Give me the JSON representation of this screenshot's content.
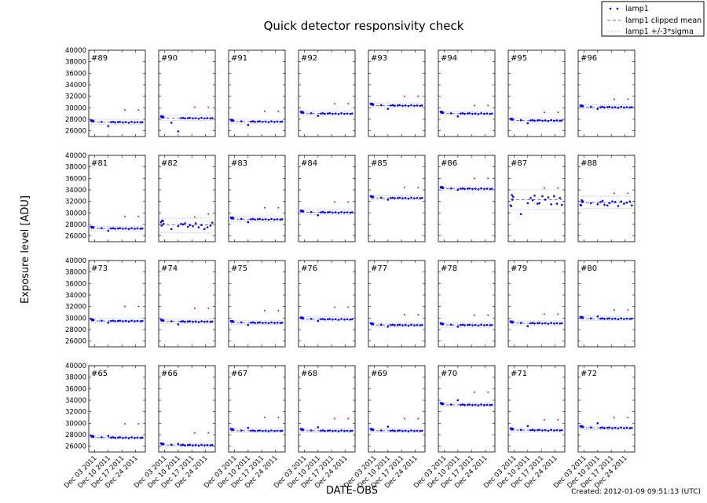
{
  "chart_data": {
    "type": "scatter",
    "title": "Quick detector responsivity check",
    "xlabel": "DATE-OBS",
    "ylabel": "Exposure level [ADU]",
    "footer": "Created: 2012-01-09 09:51:13 (UTC)",
    "ylim": [
      25000,
      40000
    ],
    "yticks": [
      26000,
      28000,
      30000,
      32000,
      34000,
      36000,
      38000,
      40000
    ],
    "xlim": [
      "2011-11-30",
      "2011-12-29"
    ],
    "xticks": [
      "2011-12-03",
      "2011-12-10",
      "2011-12-17",
      "2011-12-24"
    ],
    "xtick_labels": [
      "Dec 03 2011",
      "Dec 10 2011",
      "Dec 17 2011",
      "Dec 24 2011"
    ],
    "grid": false,
    "legend": {
      "placement": "top-right",
      "entries": [
        {
          "label": "lamp1",
          "style": "dots",
          "color": "#0000ff"
        },
        {
          "label": "lamp1 clipped mean",
          "style": "dashed",
          "color": "#6666ff"
        },
        {
          "label": "lamp1 +/-3*sigma",
          "style": "dotted",
          "color": "#9999ff"
        }
      ]
    },
    "colors": {
      "points": "#0000ff",
      "outliers": "#ff0000",
      "mean": "#5555ff",
      "sigma": "#9999ff"
    },
    "dates": [
      "2011-12-01T04",
      "2011-12-01T12",
      "2011-12-01T20",
      "2011-12-02T04",
      "2011-12-02T12",
      "2011-12-06T12",
      "2011-12-10T00",
      "2011-12-11T12",
      "2011-12-12T12",
      "2011-12-13T12",
      "2011-12-15T00",
      "2011-12-16T00",
      "2011-12-17T12",
      "2011-12-19T00",
      "2011-12-20T12",
      "2011-12-22T00",
      "2011-12-23T12",
      "2011-12-25T00",
      "2011-12-26T12",
      "2011-12-27T12"
    ],
    "outlier_dates": [
      "2011-12-18T12",
      "2011-12-25T12"
    ],
    "panels": [
      {
        "label": "#89",
        "mean": 27500,
        "lower": 27100,
        "upper": 28000,
        "outliers": [
          29600,
          29600
        ],
        "values": [
          27800,
          27700,
          27800,
          27750,
          27650,
          27550,
          26800,
          27500,
          27550,
          27450,
          27500,
          27550,
          27450,
          27500,
          27400,
          27550,
          27450,
          27500,
          27450,
          27500
        ]
      },
      {
        "label": "#90",
        "mean": 28200,
        "lower": 27800,
        "upper": 28700,
        "outliers": [
          30100,
          30100
        ],
        "values": [
          28500,
          28400,
          28500,
          28450,
          28350,
          27400,
          25900,
          28200,
          28250,
          28150,
          28200,
          28250,
          28150,
          28200,
          28100,
          28250,
          28150,
          28200,
          28150,
          28200
        ]
      },
      {
        "label": "#91",
        "mean": 27600,
        "lower": 27200,
        "upper": 28000,
        "outliers": [
          29400,
          29400
        ],
        "values": [
          27900,
          27800,
          27900,
          27850,
          27750,
          27650,
          27000,
          27600,
          27650,
          27550,
          27600,
          27650,
          27550,
          27600,
          27500,
          27650,
          27550,
          27600,
          27550,
          27600
        ]
      },
      {
        "label": "#92",
        "mean": 29000,
        "lower": 28700,
        "upper": 29400,
        "outliers": [
          30700,
          30700
        ],
        "values": [
          29300,
          29200,
          29300,
          29250,
          29150,
          29050,
          28600,
          29000,
          29050,
          28950,
          29000,
          29050,
          28950,
          29000,
          28900,
          29050,
          28950,
          29000,
          28950,
          29000
        ]
      },
      {
        "label": "#93",
        "mean": 30400,
        "lower": 30100,
        "upper": 30800,
        "outliers": [
          32000,
          32000
        ],
        "values": [
          30700,
          30600,
          30700,
          30650,
          30550,
          30450,
          29800,
          30400,
          30450,
          30350,
          30400,
          30450,
          30350,
          30400,
          30300,
          30450,
          30350,
          30400,
          30350,
          30400
        ]
      },
      {
        "label": "#94",
        "mean": 29000,
        "lower": 28700,
        "upper": 29300,
        "outliers": [
          30400,
          30400
        ],
        "values": [
          29300,
          29200,
          29300,
          29250,
          29150,
          29050,
          28500,
          29000,
          29050,
          28950,
          29000,
          29050,
          28950,
          29000,
          28900,
          29050,
          28950,
          29000,
          28950,
          29000
        ]
      },
      {
        "label": "#95",
        "mean": 27800,
        "lower": 27500,
        "upper": 28200,
        "outliers": [
          29200,
          29200
        ],
        "values": [
          28100,
          28000,
          28100,
          28050,
          27950,
          27850,
          27300,
          27800,
          27850,
          27750,
          27800,
          27850,
          27750,
          27800,
          27700,
          27850,
          27750,
          27800,
          27750,
          27800
        ]
      },
      {
        "label": "#96",
        "mean": 30100,
        "lower": 29800,
        "upper": 30500,
        "outliers": [
          31500,
          31500
        ],
        "values": [
          30400,
          30300,
          30400,
          30350,
          30250,
          30150,
          29800,
          30100,
          30150,
          30050,
          30100,
          30150,
          30050,
          30100,
          30000,
          30150,
          30050,
          30100,
          30050,
          30100
        ]
      },
      {
        "label": "#81",
        "mean": 27300,
        "lower": 26900,
        "upper": 27700,
        "outliers": [
          29400,
          29400
        ],
        "values": [
          27600,
          27500,
          27600,
          27550,
          27450,
          27350,
          26900,
          27300,
          27350,
          27250,
          27300,
          27350,
          27250,
          27300,
          27200,
          27350,
          27250,
          27300,
          27250,
          27300
        ]
      },
      {
        "label": "#82",
        "mean": 27900,
        "lower": 26600,
        "upper": 29100,
        "outliers": [
          29300,
          29800
        ],
        "values": [
          28400,
          27800,
          28700,
          28600,
          28100,
          27200,
          27700,
          28100,
          28000,
          28200,
          27600,
          27900,
          27700,
          28200,
          27500,
          27900,
          27200,
          27500,
          27800,
          28300
        ]
      },
      {
        "label": "#83",
        "mean": 28900,
        "lower": 28500,
        "upper": 29300,
        "outliers": [
          30900,
          30900
        ],
        "values": [
          29200,
          29100,
          29200,
          29150,
          29050,
          28950,
          28400,
          28900,
          28950,
          28850,
          28900,
          28950,
          28850,
          28900,
          28800,
          28950,
          28850,
          28900,
          28850,
          28900
        ]
      },
      {
        "label": "#84",
        "mean": 30100,
        "lower": 29700,
        "upper": 30500,
        "outliers": [
          31900,
          31900
        ],
        "values": [
          30400,
          30300,
          30400,
          30350,
          30250,
          30150,
          29600,
          30100,
          30150,
          30050,
          30100,
          30150,
          30050,
          30100,
          30000,
          30150,
          30050,
          30100,
          30050,
          30100
        ]
      },
      {
        "label": "#85",
        "mean": 32600,
        "lower": 32300,
        "upper": 33000,
        "outliers": [
          34400,
          34400
        ],
        "values": [
          32900,
          32800,
          32900,
          32850,
          32750,
          32650,
          32300,
          32600,
          32650,
          32550,
          32600,
          32650,
          32550,
          32600,
          32500,
          32650,
          32550,
          32600,
          32550,
          32600
        ]
      },
      {
        "label": "#86",
        "mean": 34200,
        "lower": 33900,
        "upper": 34500,
        "outliers": [
          36000,
          36000
        ],
        "values": [
          34500,
          34400,
          34500,
          34450,
          34350,
          34250,
          34000,
          34200,
          34250,
          34150,
          34200,
          34250,
          34150,
          34200,
          34100,
          34250,
          34150,
          34200,
          34150,
          34200
        ]
      },
      {
        "label": "#87",
        "mean": 32300,
        "lower": 30600,
        "upper": 34000,
        "outliers": [
          34300,
          34300
        ],
        "values": [
          31300,
          31200,
          33100,
          32300,
          32800,
          29800,
          31700,
          32600,
          32200,
          33000,
          31600,
          31700,
          32900,
          32300,
          32700,
          31500,
          32900,
          31600,
          32600,
          31400
        ]
      },
      {
        "label": "#88",
        "mean": 31800,
        "lower": 30800,
        "upper": 32900,
        "outliers": [
          33400,
          33400
        ],
        "values": [
          31400,
          31300,
          32200,
          31900,
          32000,
          31700,
          31500,
          31900,
          32100,
          31400,
          31300,
          31700,
          32000,
          31900,
          31200,
          32000,
          31600,
          31800,
          32000,
          31300
        ]
      },
      {
        "label": "#73",
        "mean": 29500,
        "lower": 29200,
        "upper": 29900,
        "outliers": [
          32000,
          32000
        ],
        "values": [
          29800,
          29700,
          29800,
          29750,
          29650,
          29550,
          29200,
          29500,
          29550,
          29450,
          29500,
          29550,
          29450,
          29500,
          29400,
          29550,
          29450,
          29500,
          29450,
          29500
        ]
      },
      {
        "label": "#74",
        "mean": 29400,
        "lower": 29100,
        "upper": 29800,
        "outliers": [
          31700,
          31700
        ],
        "values": [
          29700,
          29600,
          29700,
          29650,
          29550,
          29450,
          28900,
          29400,
          29450,
          29350,
          29400,
          29450,
          29350,
          29400,
          29300,
          29450,
          29350,
          29400,
          29350,
          29400
        ]
      },
      {
        "label": "#75",
        "mean": 29200,
        "lower": 28900,
        "upper": 29600,
        "outliers": [
          31300,
          31300
        ],
        "values": [
          29500,
          29400,
          29500,
          29450,
          29350,
          29250,
          28800,
          29200,
          29250,
          29150,
          29200,
          29250,
          29150,
          29200,
          29100,
          29250,
          29150,
          29200,
          29150,
          29200
        ]
      },
      {
        "label": "#76",
        "mean": 29800,
        "lower": 29500,
        "upper": 30200,
        "outliers": [
          31900,
          31900
        ],
        "values": [
          30100,
          30000,
          30100,
          30050,
          29950,
          29850,
          29500,
          29800,
          29850,
          29750,
          29800,
          29850,
          29750,
          29800,
          29700,
          29850,
          29750,
          29800,
          29750,
          29800
        ]
      },
      {
        "label": "#77",
        "mean": 28800,
        "lower": 28500,
        "upper": 29100,
        "outliers": [
          30600,
          30600
        ],
        "values": [
          29100,
          29000,
          29100,
          29050,
          28950,
          28850,
          28500,
          28800,
          28850,
          28750,
          28800,
          28850,
          28750,
          28800,
          28700,
          28850,
          28750,
          28800,
          28750,
          28800
        ]
      },
      {
        "label": "#78",
        "mean": 28800,
        "lower": 28400,
        "upper": 29100,
        "outliers": [
          30500,
          30500
        ],
        "values": [
          29100,
          29000,
          29100,
          29050,
          28950,
          28850,
          28500,
          28800,
          28850,
          28750,
          28800,
          28850,
          28750,
          28800,
          28700,
          28850,
          28750,
          28800,
          28750,
          28800
        ]
      },
      {
        "label": "#79",
        "mean": 29100,
        "lower": 28700,
        "upper": 29500,
        "outliers": [
          30700,
          30700
        ],
        "values": [
          29400,
          29300,
          29400,
          29350,
          29250,
          29150,
          28600,
          29100,
          29150,
          29050,
          29100,
          29150,
          29050,
          29100,
          29000,
          29150,
          29050,
          29100,
          29050,
          29100
        ]
      },
      {
        "label": "#80",
        "mean": 29900,
        "lower": 29600,
        "upper": 30300,
        "outliers": [
          31400,
          31400
        ],
        "values": [
          30200,
          30100,
          30200,
          30150,
          30050,
          29950,
          30300,
          29900,
          29950,
          29850,
          29900,
          29950,
          29850,
          29900,
          29800,
          29950,
          29850,
          29900,
          29850,
          29900
        ]
      },
      {
        "label": "#65",
        "mean": 27500,
        "lower": 27200,
        "upper": 27900,
        "outliers": [
          29900,
          29900
        ],
        "values": [
          27800,
          27700,
          27800,
          27750,
          27650,
          27550,
          27800,
          27500,
          27550,
          27450,
          27500,
          27550,
          27450,
          27500,
          27400,
          27550,
          27450,
          27500,
          27450,
          27500
        ]
      },
      {
        "label": "#66",
        "mean": 26200,
        "lower": 25900,
        "upper": 26500,
        "outliers": [
          28300,
          28300
        ],
        "values": [
          26500,
          26400,
          26500,
          26450,
          26350,
          26250,
          26400,
          26200,
          26250,
          26150,
          26200,
          26250,
          26150,
          26200,
          26100,
          26250,
          26150,
          26200,
          26150,
          26200
        ]
      },
      {
        "label": "#67",
        "mean": 28700,
        "lower": 28400,
        "upper": 29100,
        "outliers": [
          31000,
          31000
        ],
        "values": [
          29000,
          28900,
          29000,
          28950,
          28850,
          28750,
          29200,
          28700,
          28750,
          28650,
          28700,
          28750,
          28650,
          28700,
          28600,
          28750,
          28650,
          28700,
          28650,
          28700
        ]
      },
      {
        "label": "#68",
        "mean": 28700,
        "lower": 28400,
        "upper": 29000,
        "outliers": [
          30800,
          30800
        ],
        "values": [
          29000,
          28900,
          29000,
          28950,
          28850,
          28750,
          29300,
          28700,
          28750,
          28650,
          28700,
          28750,
          28650,
          28700,
          28600,
          28750,
          28650,
          28700,
          28650,
          28700
        ]
      },
      {
        "label": "#69",
        "mean": 28700,
        "lower": 28400,
        "upper": 29000,
        "outliers": [
          30800,
          30800
        ],
        "values": [
          29000,
          28900,
          29000,
          28950,
          28850,
          28750,
          29400,
          28700,
          28750,
          28650,
          28700,
          28750,
          28650,
          28700,
          28600,
          28750,
          28650,
          28700,
          28650,
          28700
        ]
      },
      {
        "label": "#70",
        "mean": 33200,
        "lower": 32900,
        "upper": 33500,
        "outliers": [
          35400,
          35400
        ],
        "values": [
          33500,
          33400,
          33500,
          33450,
          33350,
          33250,
          34000,
          33200,
          33250,
          33150,
          33200,
          33250,
          33150,
          33200,
          33100,
          33250,
          33150,
          33200,
          33150,
          33200
        ]
      },
      {
        "label": "#71",
        "mean": 28800,
        "lower": 28500,
        "upper": 29100,
        "outliers": [
          30600,
          30600
        ],
        "values": [
          29100,
          29000,
          29100,
          29050,
          28950,
          28850,
          29500,
          28800,
          28850,
          28750,
          28800,
          28850,
          28750,
          28800,
          28700,
          28850,
          28750,
          28800,
          28750,
          28800
        ]
      },
      {
        "label": "#72",
        "mean": 29200,
        "lower": 28900,
        "upper": 29500,
        "outliers": [
          31000,
          31000
        ],
        "values": [
          29500,
          29400,
          29500,
          29450,
          29350,
          29250,
          30000,
          29200,
          29250,
          29150,
          29200,
          29250,
          29150,
          29200,
          29100,
          29250,
          29150,
          29200,
          29150,
          29200
        ]
      }
    ]
  }
}
